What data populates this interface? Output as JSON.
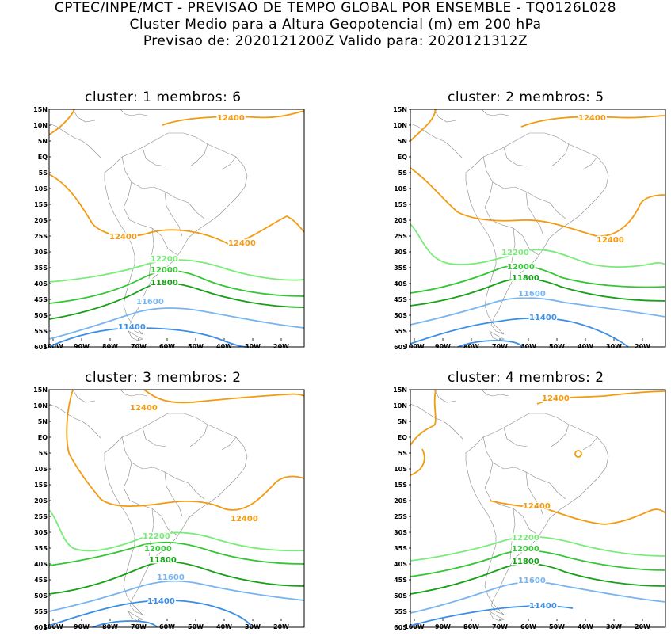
{
  "header": {
    "line1": "CPTEC/INPE/MCT - PREVISAO DE TEMPO GLOBAL POR ENSEMBLE - TQ0126L028",
    "line2": "Cluster Medio para a Altura Geopotencial (m) em 200 hPa",
    "line3": "Previsao de: 2020121200Z   Valido para: 2020121312Z"
  },
  "axes": {
    "lat_ticks": [
      "15N",
      "10N",
      "5N",
      "EQ",
      "5S",
      "10S",
      "15S",
      "20S",
      "25S",
      "30S",
      "35S",
      "40S",
      "45S",
      "50S",
      "55S",
      "60S"
    ],
    "lon_ticks": [
      "100W",
      "90W",
      "80W",
      "70W",
      "60W",
      "50W",
      "40W",
      "30W",
      "20W"
    ]
  },
  "colors": {
    "c12400": "#f29a10",
    "c12200": "#78ec78",
    "c12000": "#34c634",
    "c11800": "#18a018",
    "c11600": "#78b4f0",
    "c11400": "#3a8ee6",
    "coast": "#8a8a8a"
  },
  "panels": [
    {
      "title": "cluster: 1   membros: 6",
      "labels": {
        "a12400": "12400",
        "b12400": "12400",
        "c12400": "12400",
        "l12200": "12200",
        "l12000": "12000",
        "l11800": "11800",
        "l11600": "11600",
        "l11400": "11400"
      }
    },
    {
      "title": "cluster: 2   membros: 5",
      "labels": {
        "a12400": "12400",
        "b12400": "12400",
        "l12200": "12200",
        "l12000": "12000",
        "l11800": "11800",
        "l11600": "11600",
        "l11400": "11400"
      }
    },
    {
      "title": "cluster: 3   membros: 2",
      "labels": {
        "a12400": "12400",
        "b12400": "12400",
        "l12200": "12200",
        "l12000": "12000",
        "l11800": "11800",
        "l11600": "11600",
        "l11400": "11400"
      }
    },
    {
      "title": "cluster: 4   membros: 2",
      "labels": {
        "a12400": "12400",
        "b12400": "12400",
        "l12200": "12200",
        "l12000": "12000",
        "l11800": "11800",
        "l11600": "11600",
        "l11400": "11400"
      }
    }
  ]
}
